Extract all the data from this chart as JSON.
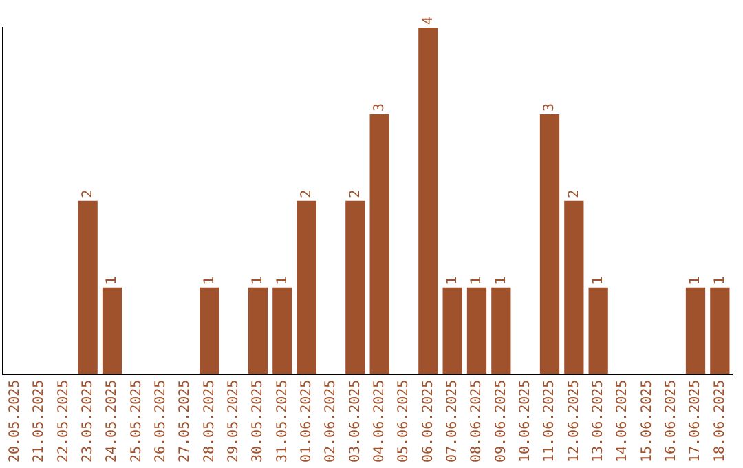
{
  "chart_data": {
    "type": "bar",
    "categories": [
      "20.05.2025",
      "21.05.2025",
      "22.05.2025",
      "23.05.2025",
      "24.05.2025",
      "25.05.2025",
      "26.05.2025",
      "27.05.2025",
      "28.05.2025",
      "29.05.2025",
      "30.05.2025",
      "31.05.2025",
      "01.06.2025",
      "02.06.2025",
      "03.06.2025",
      "04.06.2025",
      "05.06.2025",
      "06.06.2025",
      "07.06.2025",
      "08.06.2025",
      "09.06.2025",
      "10.06.2025",
      "11.06.2025",
      "12.06.2025",
      "13.06.2025",
      "14.06.2025",
      "15.06.2025",
      "16.06.2025",
      "17.06.2025",
      "18.06.2025"
    ],
    "values": [
      0,
      0,
      0,
      2,
      1,
      0,
      0,
      0,
      1,
      0,
      1,
      1,
      2,
      0,
      2,
      3,
      0,
      4,
      1,
      1,
      1,
      0,
      3,
      2,
      1,
      0,
      0,
      0,
      1,
      1
    ],
    "value_labels": [
      null,
      null,
      null,
      "2",
      "1",
      null,
      null,
      null,
      "1",
      null,
      "1",
      "1",
      "2",
      null,
      "2",
      "3",
      null,
      "4",
      "1",
      "1",
      "1",
      null,
      "3",
      "2",
      "1",
      null,
      null,
      null,
      "1",
      "1"
    ],
    "color": "#a0522d",
    "ylim": [
      0,
      4
    ],
    "tick_labels": "x",
    "grid": false,
    "legend": false
  }
}
